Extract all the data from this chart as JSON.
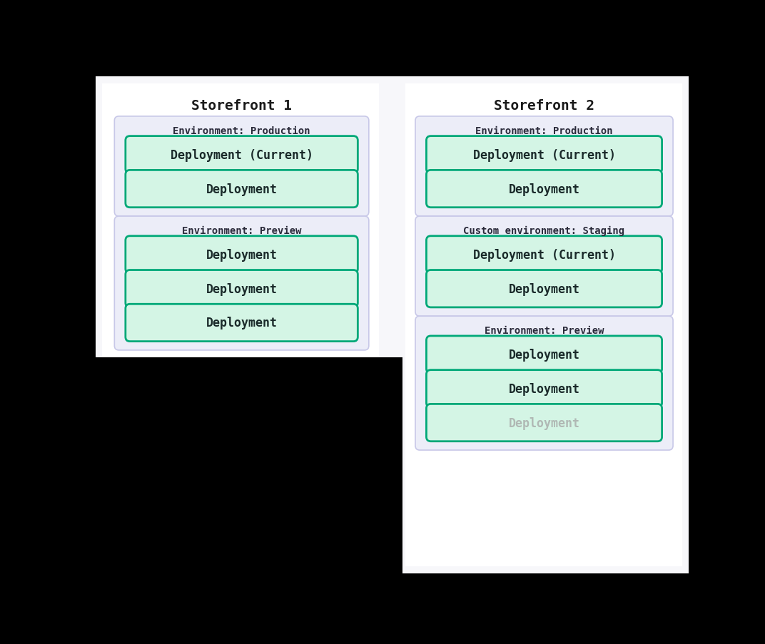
{
  "background_color": "#f7f7fa",
  "page_bg": "#ffffff",
  "env_box_bg": "#ecedf8",
  "env_box_border": "#c8c8e8",
  "deploy_box_bg": "#d4f5e5",
  "deploy_box_border": "#00a878",
  "deploy_text_color": "#1a2a2a",
  "deploy_text_faded": "#b0b8b4",
  "env_label_color": "#2a2a3a",
  "title_color": "#1a1a1a",
  "font_family": "monospace",
  "title_fontsize": 14,
  "env_label_fontsize": 10,
  "deploy_fontsize": 12,
  "storefront1": {
    "title": "Storefront 1",
    "environments": [
      {
        "label": "Environment: Production",
        "deployments": [
          {
            "text": "Deployment (Current)",
            "faded": false
          },
          {
            "text": "Deployment",
            "faded": false
          }
        ]
      },
      {
        "label": "Environment: Preview",
        "deployments": [
          {
            "text": "Deployment",
            "faded": false
          },
          {
            "text": "Deployment",
            "faded": false
          },
          {
            "text": "Deployment",
            "faded": false
          }
        ]
      }
    ]
  },
  "storefront2": {
    "title": "Storefront 2",
    "environments": [
      {
        "label": "Environment: Production",
        "deployments": [
          {
            "text": "Deployment (Current)",
            "faded": false
          },
          {
            "text": "Deployment",
            "faded": false
          }
        ]
      },
      {
        "label": "Custom environment: Staging",
        "deployments": [
          {
            "text": "Deployment (Current)",
            "faded": false
          },
          {
            "text": "Deployment",
            "faded": false
          }
        ]
      },
      {
        "label": "Environment: Preview",
        "deployments": [
          {
            "text": "Deployment",
            "faded": false
          },
          {
            "text": "Deployment",
            "faded": false
          },
          {
            "text": "Deployment",
            "faded": true
          }
        ]
      }
    ]
  }
}
